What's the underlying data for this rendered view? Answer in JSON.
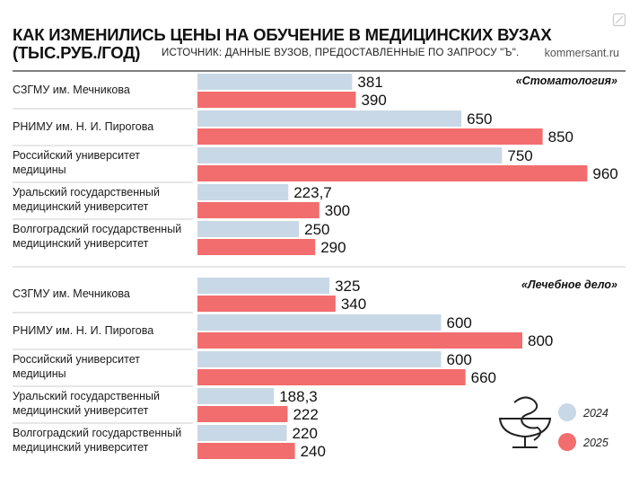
{
  "header": {
    "title_line1": "КАК ИЗМЕНИЛИСЬ ЦЕНЫ НА ОБУЧЕНИЕ В МЕДИЦИНСКИХ ВУЗАХ",
    "title_line2": "(ТЫС.РУБ./ГОД)",
    "source": "ИСТОЧНИК: ДАННЫЕ ВУЗОВ, ПРЕДОСТАВЛЕННЫЕ ПО ЗАПРОСУ \"Ъ\".",
    "site": "kommersant.ru"
  },
  "colors": {
    "series_2024": "#c9d8e6",
    "series_2025": "#f26d6d",
    "separator": "#cfcfcf",
    "text": "#1a1a1a"
  },
  "chart_data": [
    {
      "type": "bar",
      "orientation": "horizontal",
      "title": "«Стоматология»",
      "categories": [
        [
          "СЗГМУ им. Мечникова"
        ],
        [
          "РНИМУ им. Н. И. Пирогова"
        ],
        [
          "Российский университет",
          "медицины"
        ],
        [
          "Уральский государственный",
          "медицинский университет"
        ],
        [
          "Волгоградский государственный",
          "медицинский университет"
        ]
      ],
      "series": [
        {
          "name": "2024",
          "values": [
            381,
            650,
            750,
            223.7,
            250
          ],
          "labels": [
            "381",
            "650",
            "750",
            "223,7",
            "250"
          ]
        },
        {
          "name": "2025",
          "values": [
            390,
            850,
            960,
            300,
            290
          ],
          "labels": [
            "390",
            "850",
            "960",
            "300",
            "290"
          ]
        }
      ],
      "xlim": [
        0,
        1000
      ]
    },
    {
      "type": "bar",
      "orientation": "horizontal",
      "title": "«Лечебное дело»",
      "categories": [
        [
          "СЗГМУ им. Мечникова"
        ],
        [
          "РНИМУ им. Н. И. Пирогова"
        ],
        [
          "Российский университет",
          "медицины"
        ],
        [
          "Уральский государственный",
          "медицинский университет"
        ],
        [
          "Волгоградский государственный",
          "медицинский университет"
        ]
      ],
      "series": [
        {
          "name": "2024",
          "values": [
            325,
            600,
            600,
            188.3,
            220
          ],
          "labels": [
            "325",
            "600",
            "600",
            "188,3",
            "220"
          ]
        },
        {
          "name": "2025",
          "values": [
            340,
            800,
            660,
            222,
            240
          ],
          "labels": [
            "340",
            "800",
            "660",
            "222",
            "240"
          ]
        }
      ],
      "xlim": [
        0,
        1000
      ],
      "legend": [
        {
          "name": "2024",
          "color": "#c9d8e6"
        },
        {
          "name": "2025",
          "color": "#f26d6d"
        }
      ],
      "legend_position": "bottom-right",
      "legend_icon": "bowl-of-hygieia-icon"
    }
  ]
}
